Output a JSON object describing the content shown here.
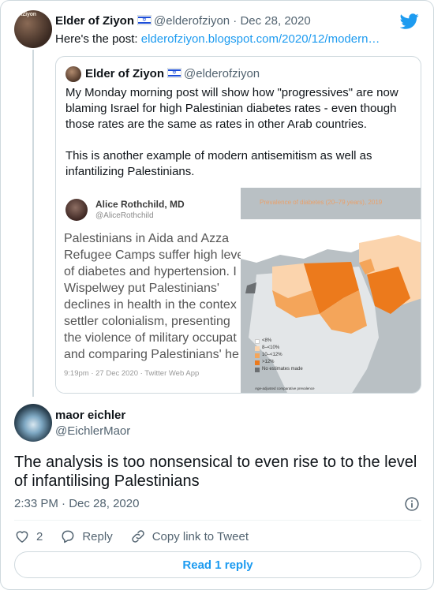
{
  "colors": {
    "accent": "#1d9bf0",
    "text_primary": "#0f1419",
    "text_secondary": "#536471",
    "border": "#cfd9de",
    "map_light": "#fbd4ad",
    "map_mid": "#f4a55a",
    "map_dark": "#ec7a1c"
  },
  "parent_tweet": {
    "name": "Elder of Ziyon",
    "flag_icon": "israel-flag-icon",
    "handle": "@elderofziyon",
    "separator": "·",
    "date": "Dec 28, 2020",
    "text_prefix": "Here's the post: ",
    "link": "elderofziyon.blogspot.com/2020/12/modern…",
    "avatar_text": "ofZiyon"
  },
  "quoted_tweet": {
    "name": "Elder of Ziyon",
    "handle": "@elderofziyon",
    "paragraphs": [
      "My Monday morning post will show how \"progressives\" are now blaming Israel for high Palestinian diabetes rates - even though those rates are the same as rates in other Arab countries.",
      "This is another example of modern antisemitism as well as infantilizing Palestinians."
    ],
    "media": {
      "inner_name": "Alice Rothchild, MD",
      "inner_handle": "@AliceRothchild",
      "inner_lines": [
        "Palestinians in Aida and Azza",
        "Refugee Camps suffer high leve",
        "of diabetes and hypertension. I",
        "Wispelwey put Palestinians'",
        "declines in health in the contex",
        "settler colonialism, presenting",
        "the violence of military occupat",
        "and comparing Palestinians' he"
      ],
      "inner_meta": "9:19pm · 27 Dec 2020 · Twitter Web App",
      "map_title": "Prevalence of diabetes (20–79 years), 2019",
      "legend": [
        "<8%",
        "8–<10%",
        "10–<12%",
        ">12%",
        "No estimates made"
      ],
      "note": "Age-adjusted comparative prevalence"
    }
  },
  "reply_tweet": {
    "name": "maor eichler",
    "handle": "@EichlerMaor",
    "text": "The analysis is too nonsensical to even rise to to the level of infantilising Palestinians",
    "time": "2:33 PM",
    "separator": "·",
    "date": "Dec 28, 2020",
    "likes": "2",
    "reply_label": "Reply",
    "copy_label": "Copy link to Tweet",
    "read_reply_label": "Read 1 reply"
  }
}
